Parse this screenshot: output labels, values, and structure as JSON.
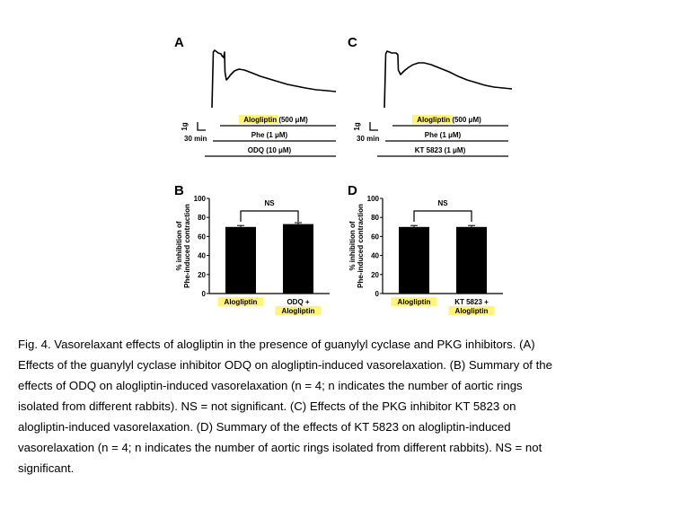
{
  "panels": {
    "A": {
      "letter": "A",
      "scale_y": "1g",
      "scale_x": "30 min",
      "bars": [
        {
          "label": "Alogliptin (500 μM)",
          "highlight": true
        },
        {
          "label": "Phe (1 μM)",
          "highlight": false
        },
        {
          "label": "ODQ (10 μM)",
          "highlight": false
        }
      ]
    },
    "C": {
      "letter": "C",
      "scale_y": "1g",
      "scale_x": "30 min",
      "bars": [
        {
          "label": "Alogliptin (500 μM)",
          "highlight": true
        },
        {
          "label": "Phe (1 μM)",
          "highlight": false
        },
        {
          "label": "KT 5823 (1 μM)",
          "highlight": false
        }
      ]
    },
    "B": {
      "letter": "B"
    },
    "D": {
      "letter": "D"
    }
  },
  "chart_data": [
    {
      "panel": "B",
      "type": "bar",
      "ylabel": [
        "% inhibition of",
        "Phe-induced contraction"
      ],
      "ylim": [
        0,
        100
      ],
      "yticks": [
        "0",
        "20",
        "40",
        "60",
        "80",
        "100"
      ],
      "categories": [
        [
          "Alogliptin"
        ],
        [
          "ODQ +",
          "Alogliptin"
        ]
      ],
      "values": [
        70,
        73
      ],
      "errors": [
        1.5,
        1.5
      ],
      "significance": "NS"
    },
    {
      "panel": "D",
      "type": "bar",
      "ylabel": [
        "% inhibition of",
        "Phe-induced contraction"
      ],
      "ylim": [
        0,
        100
      ],
      "yticks": [
        "0",
        "20",
        "40",
        "60",
        "80",
        "100"
      ],
      "categories": [
        [
          "Alogliptin"
        ],
        [
          "KT 5823 +",
          "Alogliptin"
        ]
      ],
      "values": [
        70,
        70
      ],
      "errors": [
        1.5,
        1.5
      ],
      "significance": "NS"
    }
  ],
  "caption_lines": [
    "Fig. 4. Vasorelaxant effects of alogliptin in the presence of guanylyl cyclase and PKG inhibitors. (A)",
    "Effects of the guanylyl cyclase inhibitor ODQ on alogliptin-induced vasorelaxation. (B) Summary of the",
    "effects of ODQ on alogliptin-induced vasorelaxation (n = 4; n indicates the number of aortic rings",
    "isolated from different rabbits). NS = not significant. (C) Effects of the PKG inhibitor KT 5823 on",
    "alogliptin-induced vasorelaxation. (D) Summary of the effects of KT 5823 on alogliptin-induced",
    "vasorelaxation (n = 4; n indicates the number of aortic rings isolated from different rabbits). NS = not",
    "significant."
  ],
  "colors": {
    "highlight": "#fff37a",
    "bar": "#000000",
    "trace": "#000000"
  }
}
